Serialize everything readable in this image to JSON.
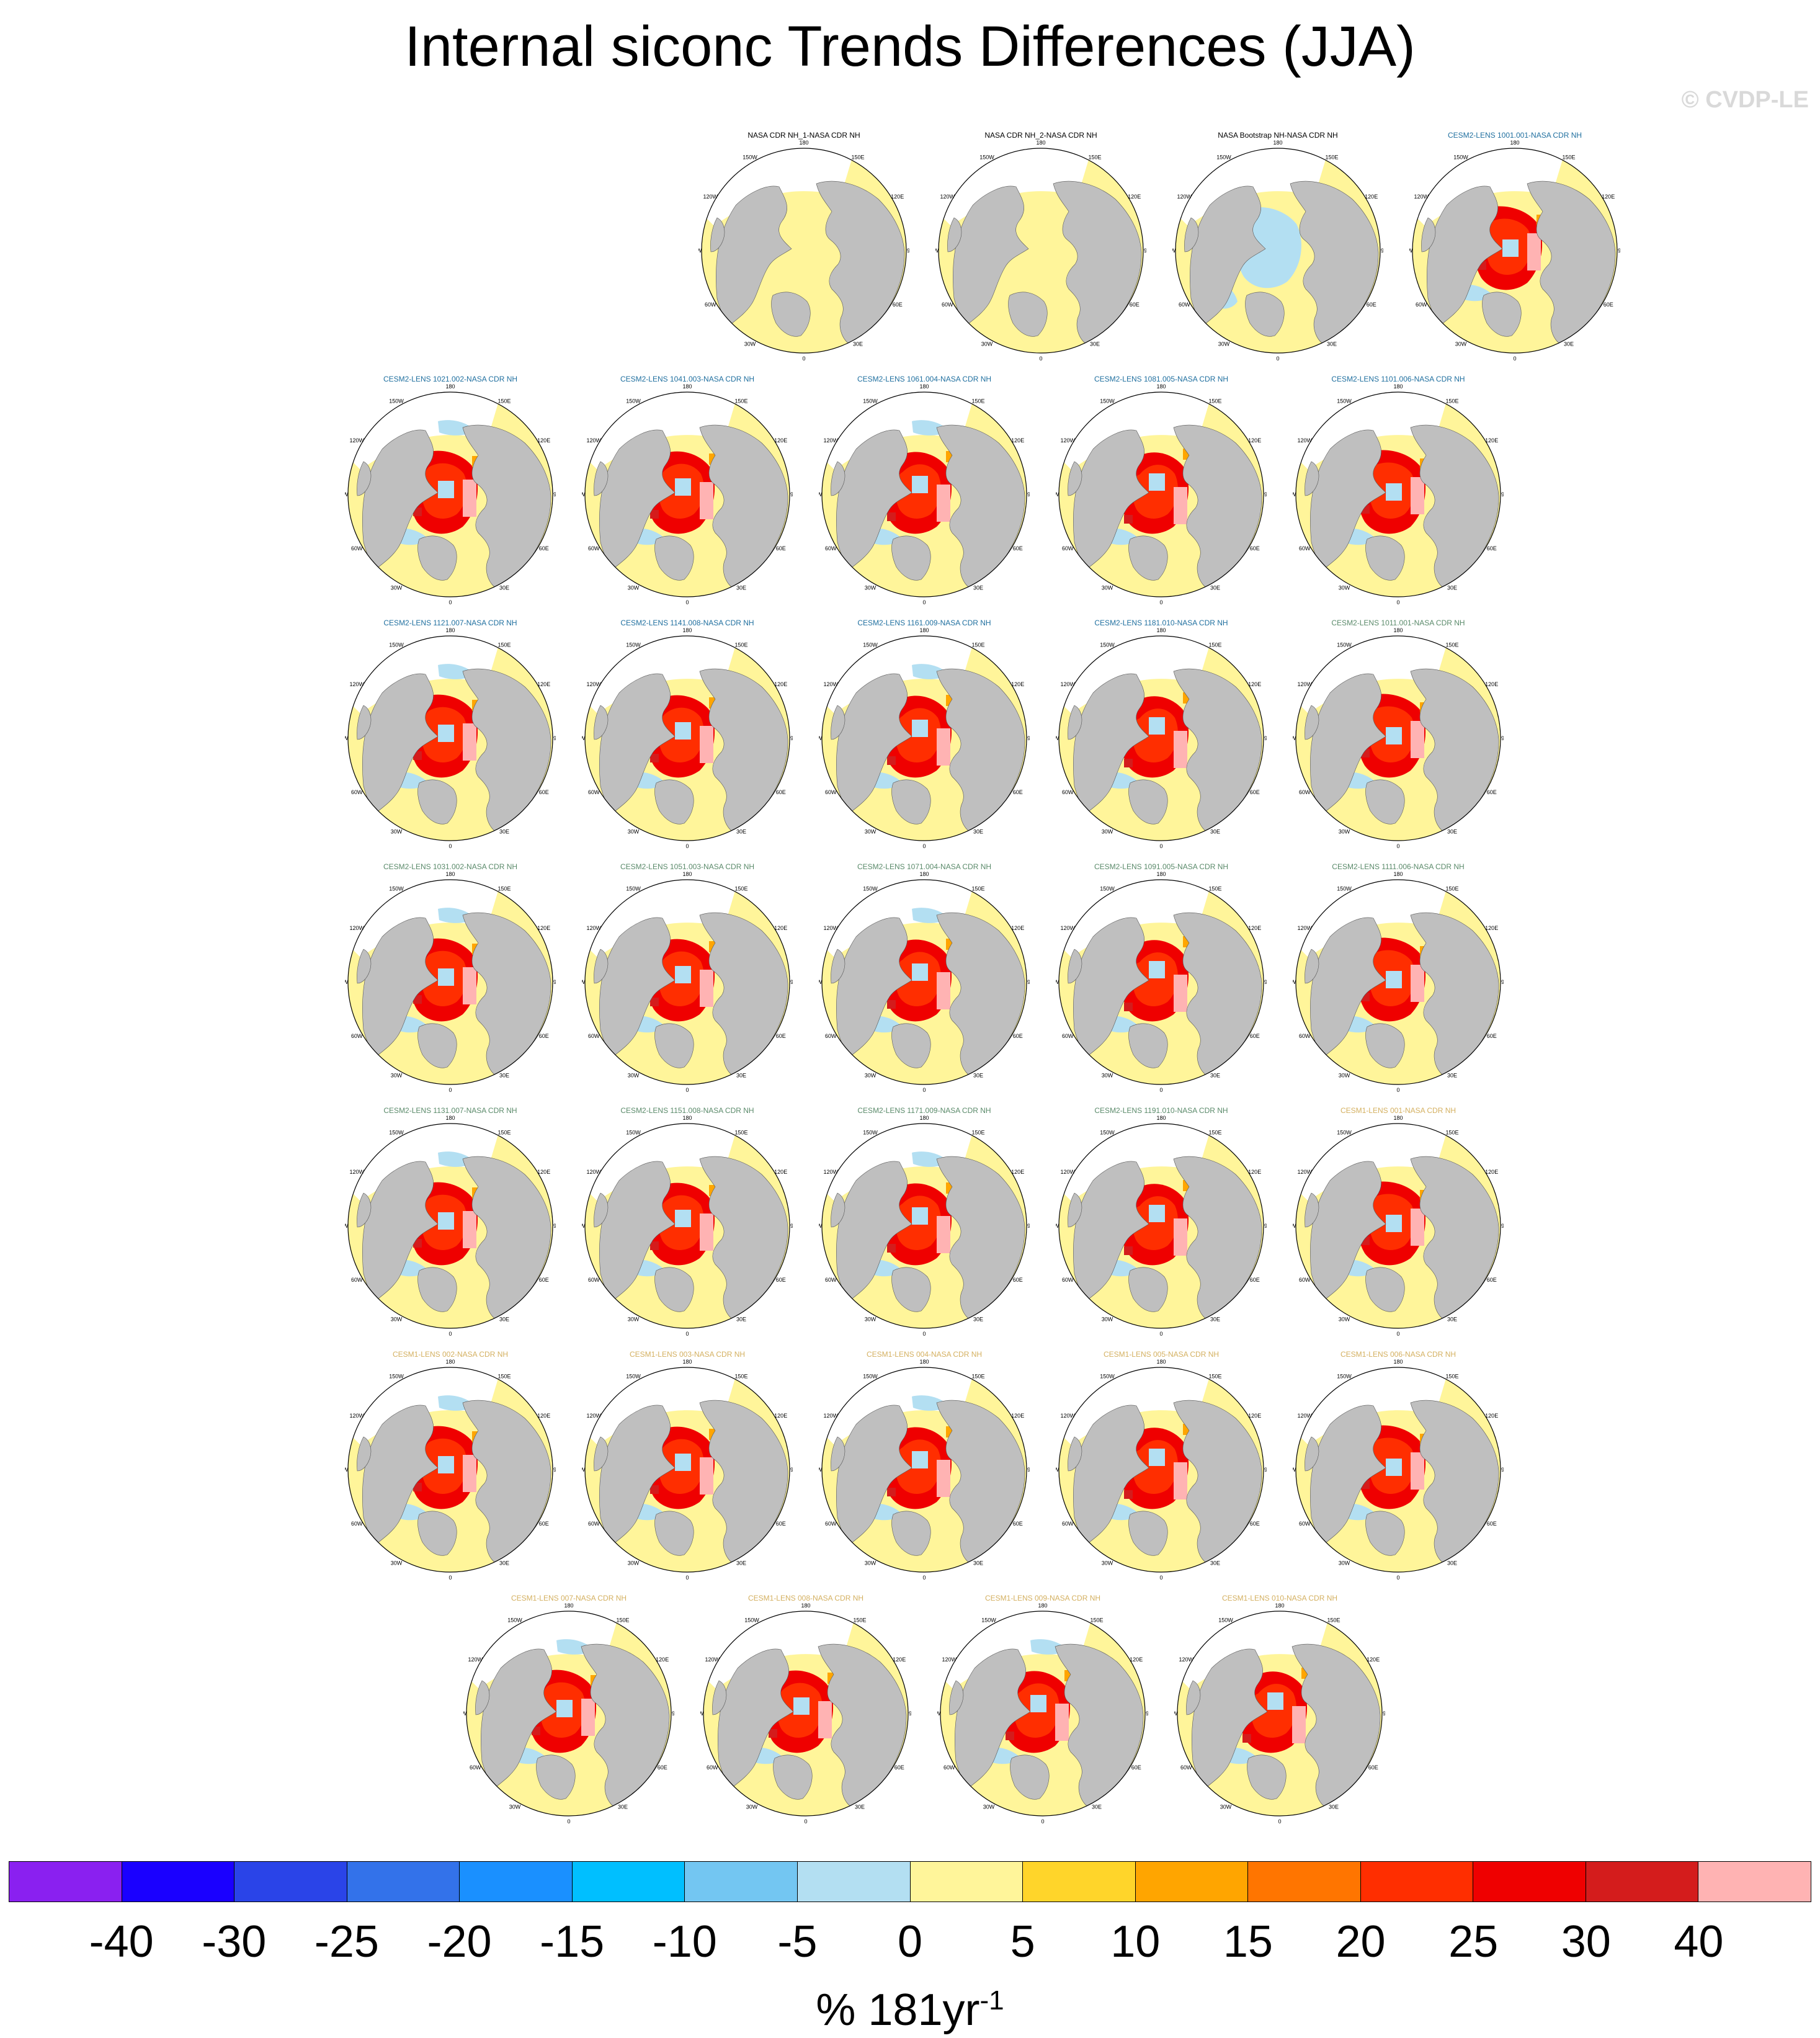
{
  "title": "Internal siconc Trends Differences (JJA)",
  "watermark": "© CVDP-LE",
  "longitude_labels": [
    "180",
    "150E",
    "120E",
    "90E",
    "60E",
    "30E",
    "0",
    "30W",
    "60W",
    "90W",
    "120W",
    "150W"
  ],
  "title_colors": {
    "obs": "#000000",
    "cesm2_a": "#1f6f9f",
    "cesm2_b": "#5a8a6a",
    "cesm1": "#d4b060"
  },
  "panels": [
    {
      "title": "NASA CDR NH_1-NASA CDR NH",
      "group": "obs",
      "variant": 0
    },
    {
      "title": "NASA CDR NH_2-NASA CDR NH",
      "group": "obs",
      "variant": 0
    },
    {
      "title": "NASA Bootstrap NH-NASA CDR NH",
      "group": "obs",
      "variant": 1
    },
    {
      "title": "CESM2-LENS 1001.001-NASA CDR NH",
      "group": "cesm2_a",
      "variant": 2
    },
    {
      "title": "CESM2-LENS 1021.002-NASA CDR NH",
      "group": "cesm2_a",
      "variant": 3
    },
    {
      "title": "CESM2-LENS 1041.003-NASA CDR NH",
      "group": "cesm2_a",
      "variant": 4
    },
    {
      "title": "CESM2-LENS 1061.004-NASA CDR NH",
      "group": "cesm2_a",
      "variant": 5
    },
    {
      "title": "CESM2-LENS 1081.005-NASA CDR NH",
      "group": "cesm2_a",
      "variant": 6
    },
    {
      "title": "CESM2-LENS 1101.006-NASA CDR NH",
      "group": "cesm2_a",
      "variant": 2
    },
    {
      "title": "CESM2-LENS 1121.007-NASA CDR NH",
      "group": "cesm2_a",
      "variant": 3
    },
    {
      "title": "CESM2-LENS 1141.008-NASA CDR NH",
      "group": "cesm2_a",
      "variant": 4
    },
    {
      "title": "CESM2-LENS 1161.009-NASA CDR NH",
      "group": "cesm2_a",
      "variant": 5
    },
    {
      "title": "CESM2-LENS 1181.010-NASA CDR NH",
      "group": "cesm2_a",
      "variant": 6
    },
    {
      "title": "CESM2-LENS 1011.001-NASA CDR NH",
      "group": "cesm2_b",
      "variant": 2
    },
    {
      "title": "CESM2-LENS 1031.002-NASA CDR NH",
      "group": "cesm2_b",
      "variant": 3
    },
    {
      "title": "CESM2-LENS 1051.003-NASA CDR NH",
      "group": "cesm2_b",
      "variant": 4
    },
    {
      "title": "CESM2-LENS 1071.004-NASA CDR NH",
      "group": "cesm2_b",
      "variant": 5
    },
    {
      "title": "CESM2-LENS 1091.005-NASA CDR NH",
      "group": "cesm2_b",
      "variant": 6
    },
    {
      "title": "CESM2-LENS 1111.006-NASA CDR NH",
      "group": "cesm2_b",
      "variant": 2
    },
    {
      "title": "CESM2-LENS 1131.007-NASA CDR NH",
      "group": "cesm2_b",
      "variant": 3
    },
    {
      "title": "CESM2-LENS 1151.008-NASA CDR NH",
      "group": "cesm2_b",
      "variant": 4
    },
    {
      "title": "CESM2-LENS 1171.009-NASA CDR NH",
      "group": "cesm2_b",
      "variant": 5
    },
    {
      "title": "CESM2-LENS 1191.010-NASA CDR NH",
      "group": "cesm2_b",
      "variant": 6
    },
    {
      "title": "CESM1-LENS 001-NASA CDR NH",
      "group": "cesm1",
      "variant": 2
    },
    {
      "title": "CESM1-LENS 002-NASA CDR NH",
      "group": "cesm1",
      "variant": 3
    },
    {
      "title": "CESM1-LENS 003-NASA CDR NH",
      "group": "cesm1",
      "variant": 4
    },
    {
      "title": "CESM1-LENS 004-NASA CDR NH",
      "group": "cesm1",
      "variant": 5
    },
    {
      "title": "CESM1-LENS 005-NASA CDR NH",
      "group": "cesm1",
      "variant": 6
    },
    {
      "title": "CESM1-LENS 006-NASA CDR NH",
      "group": "cesm1",
      "variant": 2
    },
    {
      "title": "CESM1-LENS 007-NASA CDR NH",
      "group": "cesm1",
      "variant": 3
    },
    {
      "title": "CESM1-LENS 008-NASA CDR NH",
      "group": "cesm1",
      "variant": 4
    },
    {
      "title": "CESM1-LENS 009-NASA CDR NH",
      "group": "cesm1",
      "variant": 5
    },
    {
      "title": "CESM1-LENS 010-NASA CDR NH",
      "group": "cesm1",
      "variant": 6
    }
  ],
  "colorbar": {
    "colors": [
      "#8a20f0",
      "#1a00ff",
      "#2a44e8",
      "#3372ea",
      "#1a90ff",
      "#00bfff",
      "#73c6f2",
      "#b3dff2",
      "#fff59a",
      "#ffd52a",
      "#ffa500",
      "#ff7500",
      "#ff2e00",
      "#ef0000",
      "#d41c1c",
      "#ffb3b3"
    ],
    "labels": [
      "-40",
      "-30",
      "-25",
      "-20",
      "-15",
      "-10",
      "-5",
      "0",
      "5",
      "10",
      "15",
      "20",
      "25",
      "30",
      "40"
    ]
  },
  "units_main": "% 181yr",
  "units_exp": "-1",
  "map_colors": {
    "land": "#bfbfbf",
    "ocean_background": "#fff59a",
    "missing": "#ffffff"
  }
}
